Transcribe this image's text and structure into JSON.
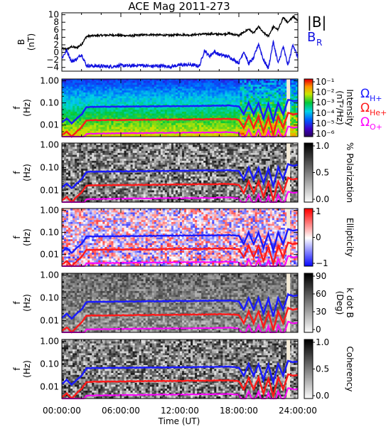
{
  "title": "ACE Mag 2011-273",
  "time_ticks": [
    "00:00:00",
    "06:00:00",
    "12:00:00",
    "18:00:00",
    "24:00:00"
  ],
  "xlabel": "Time (UT)",
  "legend_top": {
    "b": "|B|",
    "br": "B",
    "br_sub": "R",
    "b_color": "#000000",
    "br_color": "#1010e0"
  },
  "legend_freq": [
    {
      "sym": "Ω",
      "sub": "H+",
      "color": "#1a1aff"
    },
    {
      "sym": "Ω",
      "sub": "He+",
      "color": "#ff1a1a"
    },
    {
      "sym": "Ω",
      "sub": "O+",
      "color": "#ff00ff"
    }
  ],
  "chart_data": [
    {
      "type": "line",
      "panel": "magnetic-field",
      "xlabel": "",
      "ylabel": "B",
      "ylabel2": "(nT)",
      "ylim": [
        -5,
        10.5
      ],
      "yticks": [
        "10",
        "8",
        "6",
        "4",
        "2",
        "0",
        "−2",
        "−4"
      ],
      "yvalues": [
        10,
        8,
        6,
        4,
        2,
        0,
        -2,
        -4
      ],
      "series": [
        {
          "name": "|B|",
          "color": "#000000",
          "x": [
            0,
            0.5,
            1,
            1.5,
            2,
            2.5,
            3,
            4,
            5,
            6,
            7,
            8,
            9,
            10,
            11,
            12,
            13,
            14,
            15,
            16,
            17,
            18,
            18.5,
            19,
            19.5,
            20,
            20.5,
            21,
            21.5,
            22,
            22.5,
            23,
            23.5,
            24
          ],
          "y": [
            1,
            0.8,
            1.5,
            1.2,
            2.1,
            4.2,
            4.4,
            4.5,
            4.6,
            4.5,
            4.4,
            4.6,
            4.7,
            4.6,
            4.5,
            4.7,
            4.6,
            4.8,
            4.9,
            4.8,
            5.0,
            4.5,
            5.3,
            6.2,
            5.1,
            6.8,
            5.2,
            4.3,
            6.8,
            6.0,
            9.3,
            7.8,
            9.6,
            8.5
          ]
        },
        {
          "name": "B",
          "color": "#1010e0",
          "x": [
            0,
            0.5,
            1,
            1.5,
            2,
            2.5,
            3,
            4,
            5,
            6,
            7,
            8,
            9,
            10,
            11,
            12,
            13,
            14,
            14.5,
            15,
            15.5,
            16,
            17,
            18,
            18.5,
            19,
            19.5,
            20,
            20.5,
            21,
            21.5,
            22,
            22.5,
            23,
            23.5,
            24
          ],
          "y": [
            -1.5,
            0.5,
            -2.5,
            -1.8,
            -0.5,
            -3.5,
            -3.6,
            -3.7,
            -3.8,
            -3.5,
            -3.6,
            -3.4,
            -3.7,
            -3.6,
            -3.8,
            -3.4,
            -3.3,
            -3.6,
            0.5,
            -1.0,
            0.2,
            -0.6,
            -1.2,
            -2.8,
            0.3,
            -3.0,
            -1.5,
            2.3,
            -2.0,
            -4.2,
            2.8,
            -3.0,
            1.5,
            -3.5,
            2.2,
            -1.5
          ]
        }
      ]
    },
    {
      "type": "heatmap",
      "panel": "power-spectrum",
      "ylabel": "f",
      "ylabel2": "(Hz)",
      "yscale": "log",
      "ylim": [
        0.003,
        1.2
      ],
      "yticks": [
        "1.00",
        "0.10",
        "0.01"
      ],
      "yvalues": [
        1,
        0.1,
        0.01
      ],
      "colorbar_label": "Intensity",
      "colorbar_label2": "(nT²/Hz)",
      "colorbar_ticks": [
        "10⁻¹",
        "10⁻²",
        "10⁻³",
        "10⁻⁴",
        "10⁻⁵",
        "10⁻⁶"
      ],
      "colormap": "rainbow"
    },
    {
      "type": "heatmap",
      "panel": "polarization",
      "ylabel": "f",
      "ylabel2": "(Hz)",
      "yscale": "log",
      "yticks": [
        "1.00",
        "0.10",
        "0.01"
      ],
      "yvalues": [
        1,
        0.1,
        0.01
      ],
      "colorbar_label": "% Polarization",
      "colorbar_ticks": [
        "1.0",
        "0.5",
        "0.0"
      ],
      "colormap": "gray"
    },
    {
      "type": "heatmap",
      "panel": "ellipticity",
      "ylabel": "f",
      "ylabel2": "(Hz)",
      "yscale": "log",
      "yticks": [
        "1.00",
        "0.10",
        "0.01"
      ],
      "yvalues": [
        1,
        0.1,
        0.01
      ],
      "colorbar_label": "Ellipticity",
      "colorbar_ticks": [
        "1",
        "0",
        "−1"
      ],
      "colormap": "bwr"
    },
    {
      "type": "heatmap",
      "panel": "k-dot-b",
      "ylabel": "f",
      "ylabel2": "(Hz)",
      "yscale": "log",
      "yticks": [
        "1.00",
        "0.10",
        "0.01"
      ],
      "yvalues": [
        1,
        0.1,
        0.01
      ],
      "colorbar_label": "k dot B",
      "colorbar_label2": "(Deg)",
      "colorbar_ticks": [
        "90",
        "60",
        "30",
        "0"
      ],
      "colormap": "gray"
    },
    {
      "type": "heatmap",
      "panel": "coherency",
      "ylabel": "f",
      "ylabel2": "(Hz)",
      "yscale": "log",
      "yticks": [
        "1.00",
        "0.10",
        "0.01"
      ],
      "yvalues": [
        1,
        0.1,
        0.01
      ],
      "colorbar_label": "Coherency",
      "colorbar_ticks": [
        "1.0",
        "0.5",
        "0.0"
      ],
      "colormap": "gray"
    }
  ],
  "gyrofrequency_lines": {
    "x": [
      0,
      0.5,
      1,
      1.5,
      2,
      2.5,
      3,
      6,
      9,
      12,
      15,
      17,
      18,
      18.5,
      19,
      19.5,
      20,
      20.5,
      21,
      21.5,
      22,
      22.5,
      23,
      23.5,
      24
    ],
    "H+": [
      0.013,
      0.02,
      0.012,
      0.02,
      0.03,
      0.064,
      0.066,
      0.068,
      0.07,
      0.072,
      0.074,
      0.076,
      0.07,
      0.03,
      0.1,
      0.03,
      0.1,
      0.02,
      0.09,
      0.015,
      0.1,
      0.03,
      0.14,
      0.12,
      0.13
    ],
    "He+": [
      0.0035,
      0.005,
      0.003,
      0.005,
      0.008,
      0.016,
      0.0165,
      0.017,
      0.0175,
      0.018,
      0.0185,
      0.019,
      0.0175,
      0.0075,
      0.025,
      0.0075,
      0.025,
      0.005,
      0.0225,
      0.0038,
      0.025,
      0.0075,
      0.035,
      0.03,
      0.0325
    ],
    "O+": [
      0.0009,
      0.0013,
      0.0008,
      0.0013,
      0.002,
      0.004,
      0.0041,
      0.0043,
      0.0044,
      0.0045,
      0.0046,
      0.0048,
      0.0044,
      0.0019,
      0.0063,
      0.0019,
      0.0063,
      0.0013,
      0.0056,
      0.001,
      0.0063,
      0.0019,
      0.0088,
      0.0075,
      0.0081
    ]
  }
}
